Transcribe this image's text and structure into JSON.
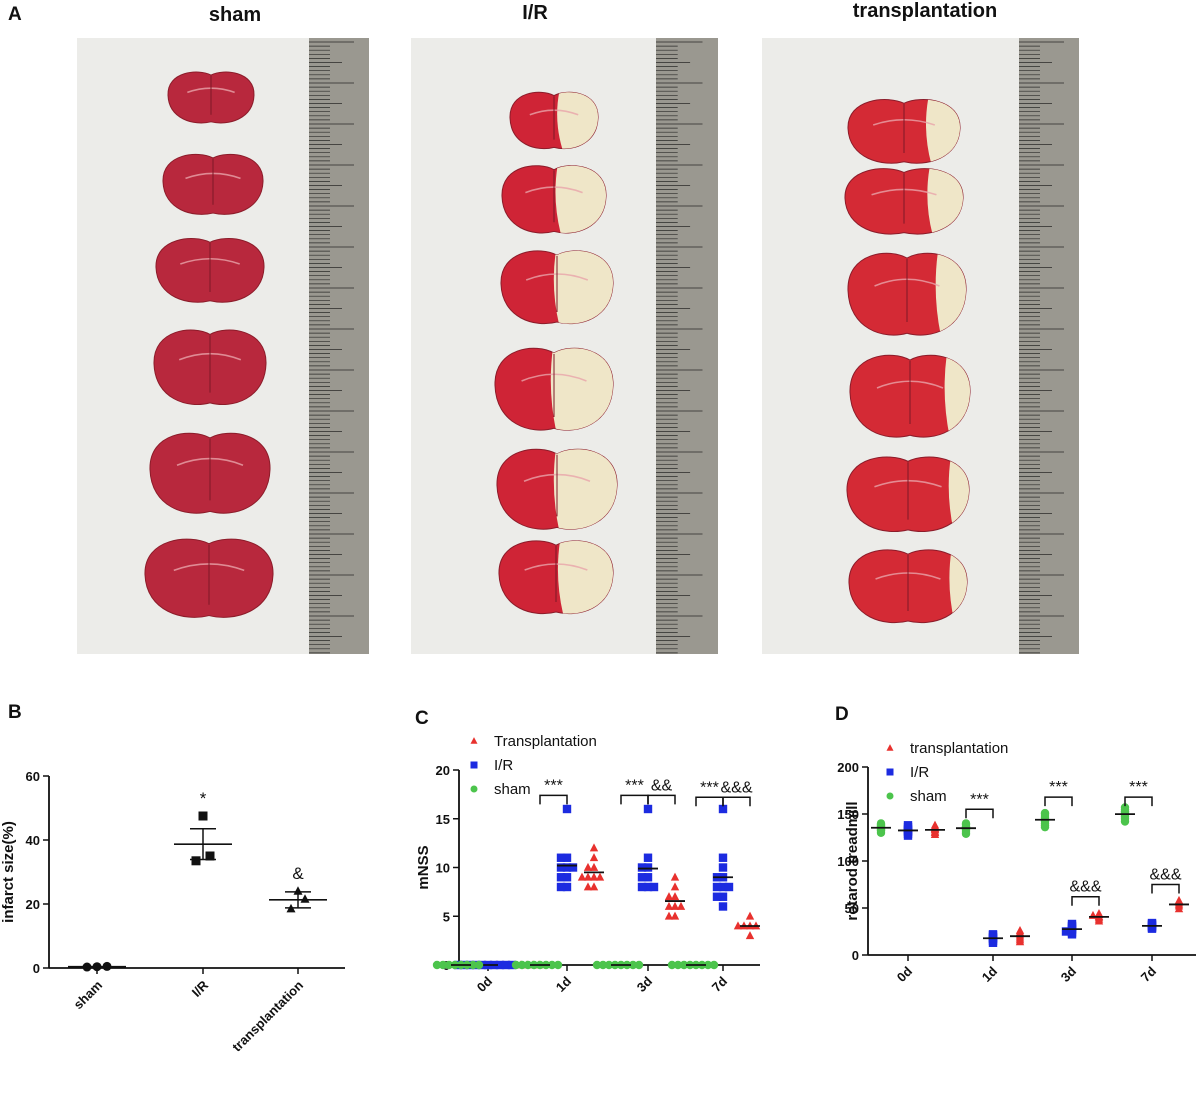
{
  "panel_a": {
    "letter": "A",
    "titles": [
      "sham",
      "I/R",
      "transplantation"
    ]
  },
  "colors": {
    "transplantation": "#e8312e",
    "ir": "#1c2be0",
    "sham": "#4cc44c",
    "tissue_red": "#c8253a",
    "infarct_pale": "#efe6c8",
    "background": "#ecece9"
  },
  "chart_data": [
    {
      "panel": "B",
      "type": "scatter",
      "title": "",
      "xlabel": "",
      "ylabel": "infarct size(%)",
      "categories": [
        "sham",
        "I/R",
        "transplantation"
      ],
      "ylim": [
        0,
        60
      ],
      "yticks": [
        0,
        20,
        40,
        60
      ],
      "points": [
        [
          0.3,
          0.4,
          0.5
        ],
        [
          33.5,
          35,
          47.5
        ],
        [
          18.5,
          21.5,
          24
        ]
      ],
      "means": [
        0.4,
        38.7,
        21.3
      ],
      "sem": [
        0.1,
        4.8,
        2.5
      ],
      "markers": [
        "circle",
        "square",
        "triangle"
      ],
      "annotations": [
        "",
        "*",
        "&"
      ]
    },
    {
      "panel": "C",
      "type": "scatter",
      "title": "",
      "xlabel": "",
      "ylabel": "mNSS",
      "categories": [
        "0d",
        "1d",
        "3d",
        "7d"
      ],
      "ylim": [
        0,
        20
      ],
      "yticks": [
        0,
        5,
        10,
        15,
        20
      ],
      "series": [
        {
          "name": "Transplantation",
          "marker": "triangle",
          "values": [
            [
              0,
              0,
              0,
              0,
              0,
              0,
              0,
              0,
              0,
              0
            ],
            [
              8,
              8,
              9,
              9,
              9,
              9,
              10,
              10,
              11,
              12
            ],
            [
              5,
              5,
              6,
              6,
              6,
              7,
              7,
              8,
              9
            ],
            [
              3,
              4,
              4,
              4,
              4,
              5
            ]
          ]
        },
        {
          "name": "I/R",
          "marker": "square",
          "values": [
            [
              0,
              0,
              0,
              0,
              0,
              0,
              0,
              0,
              0,
              0
            ],
            [
              8,
              8,
              9,
              9,
              10,
              10,
              10,
              11,
              11,
              16
            ],
            [
              8,
              8,
              8,
              9,
              9,
              10,
              10,
              11,
              16
            ],
            [
              6,
              7,
              7,
              8,
              8,
              8,
              9,
              9,
              10,
              11,
              16
            ]
          ]
        },
        {
          "name": "sham",
          "marker": "circle",
          "values": [
            [
              0,
              0,
              0,
              0,
              0,
              0,
              0,
              0
            ],
            [
              0,
              0,
              0,
              0,
              0,
              0,
              0,
              0
            ],
            [
              0,
              0,
              0,
              0,
              0,
              0,
              0,
              0
            ],
            [
              0,
              0,
              0,
              0,
              0,
              0,
              0,
              0
            ]
          ]
        }
      ],
      "significance": [
        {
          "category": "1d",
          "label": "***",
          "type": "sham-ir"
        },
        {
          "category": "3d",
          "label": "***",
          "type": "sham-ir"
        },
        {
          "category": "3d",
          "label": "&&",
          "type": "ir-trans"
        },
        {
          "category": "7d",
          "label": "***",
          "type": "sham-ir"
        },
        {
          "category": "7d",
          "label": "&&&",
          "type": "ir-trans"
        }
      ]
    },
    {
      "panel": "D",
      "type": "scatter",
      "title": "",
      "xlabel": "",
      "ylabel": "rotarod treadmill",
      "categories": [
        "0d",
        "1d",
        "3d",
        "7d"
      ],
      "ylim": [
        0,
        200
      ],
      "yticks": [
        0,
        50,
        100,
        150,
        200
      ],
      "series": [
        {
          "name": "transplantation",
          "marker": "triangle",
          "values": [
            [
              128,
              130,
              131,
              133,
              134,
              135,
              136,
              138
            ],
            [
              14,
              16,
              18,
              20,
              22,
              24,
              26
            ],
            [
              36,
              38,
              40,
              41,
              42,
              43,
              44
            ],
            [
              49,
              52,
              54,
              56,
              58
            ]
          ]
        },
        {
          "name": "I/R",
          "marker": "square",
          "values": [
            [
              127,
              129,
              131,
              132,
              133,
              134,
              136,
              138
            ],
            [
              13,
              15,
              17,
              18,
              19,
              21,
              22
            ],
            [
              22,
              24,
              25,
              27,
              28,
              30,
              31,
              33
            ],
            [
              28,
              29,
              30,
              31,
              32,
              33,
              34
            ]
          ]
        },
        {
          "name": "sham",
          "marker": "circle",
          "values": [
            [
              130,
              132,
              133,
              134,
              135,
              136,
              137,
              138,
              139,
              140
            ],
            [
              129,
              131,
              133,
              134,
              135,
              136,
              137,
              139,
              140
            ],
            [
              136,
              138,
              140,
              142,
              144,
              146,
              148,
              150,
              151
            ],
            [
              142,
              145,
              147,
              148,
              150,
              152,
              153,
              155,
              157
            ]
          ]
        }
      ],
      "significance": [
        {
          "category": "1d",
          "label": "***",
          "type": "sham-ir"
        },
        {
          "category": "3d",
          "label": "***",
          "type": "sham-ir"
        },
        {
          "category": "3d",
          "label": "&&&",
          "type": "ir-trans"
        },
        {
          "category": "7d",
          "label": "***",
          "type": "sham-ir"
        },
        {
          "category": "7d",
          "label": "&&&",
          "type": "ir-trans"
        }
      ]
    }
  ]
}
